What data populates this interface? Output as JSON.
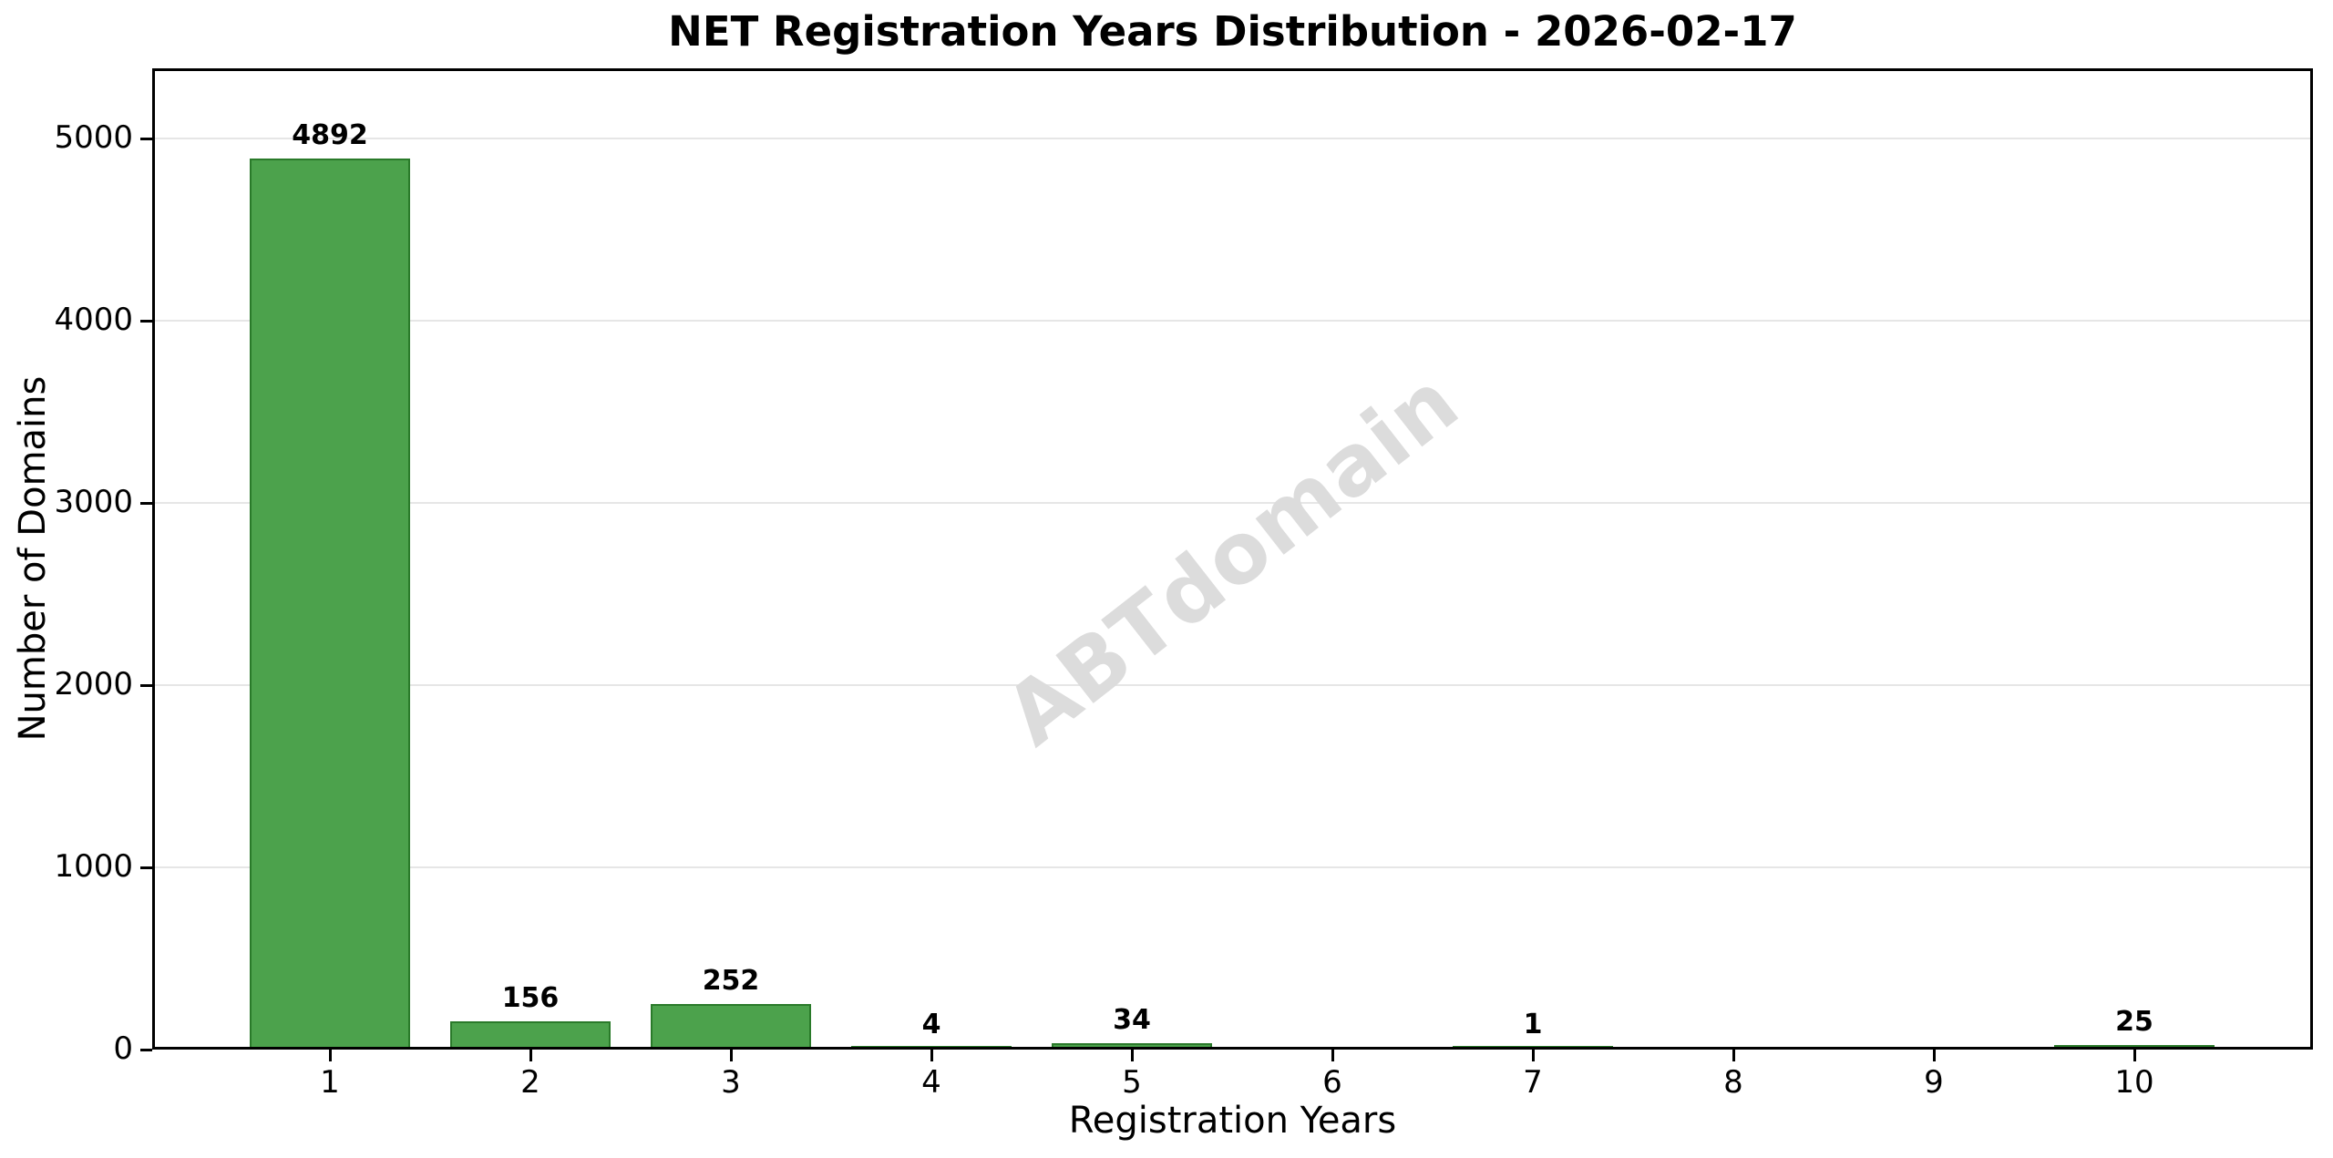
{
  "watermark": "ABTdomain",
  "chart_data": {
    "type": "bar",
    "title": "NET Registration Years Distribution - 2026-02-17",
    "xlabel": "Registration Years",
    "ylabel": "Number of Domains",
    "categories": [
      "1",
      "2",
      "3",
      "4",
      "5",
      "6",
      "7",
      "8",
      "9",
      "10"
    ],
    "values": [
      4892,
      156,
      252,
      4,
      34,
      0,
      1,
      0,
      0,
      25
    ],
    "value_labels": [
      "4892",
      "156",
      "252",
      "4",
      "34",
      "",
      "1",
      "",
      "",
      "25"
    ],
    "ylim": [
      0,
      5385
    ],
    "yticks": [
      0,
      1000,
      2000,
      3000,
      4000,
      5000
    ],
    "grid": "horizontal-only",
    "legend": "none",
    "colors": {
      "bar_fill": "#4CA24C",
      "bar_edge": "#2A7A2A",
      "gridline": "#e6e6e6",
      "watermark": "#dcdcdc",
      "text": "#000000",
      "background": "#ffffff"
    }
  }
}
